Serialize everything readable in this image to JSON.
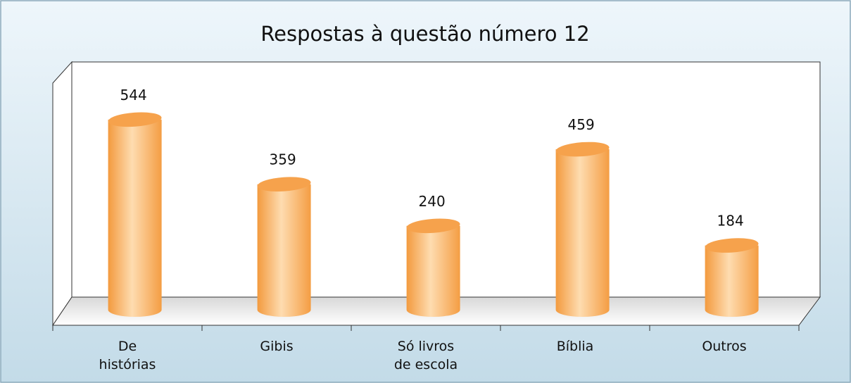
{
  "chart_data": {
    "type": "bar",
    "title": "Respostas à questão número 12",
    "categories": [
      "De histórias",
      "Gibis",
      "Só livros de escola",
      "Bíblia",
      "Outros"
    ],
    "values": [
      544,
      359,
      240,
      459,
      184
    ],
    "color": "#f6a24c",
    "ylim": [
      0,
      600
    ]
  }
}
